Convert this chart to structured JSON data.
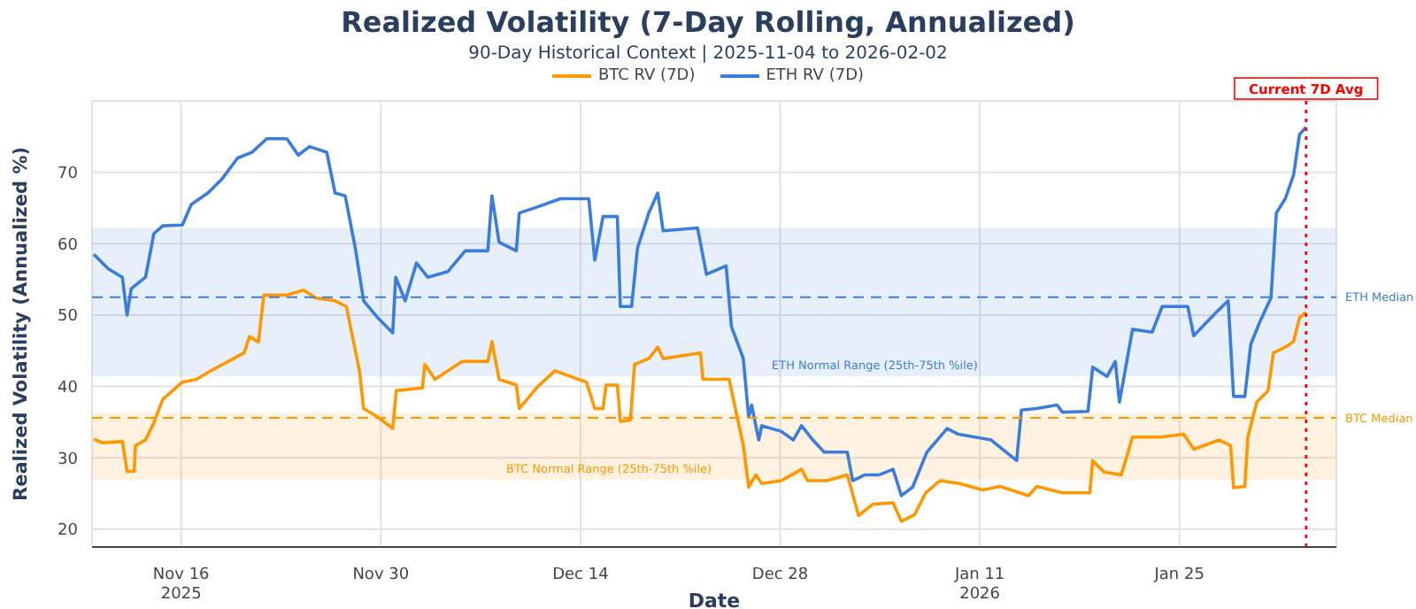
{
  "chart_data": {
    "type": "line",
    "title": "Realized Volatility (7-Day Rolling, Annualized)",
    "subtitle": "90-Day Historical Context | 2025-11-04 to 2026-02-02",
    "xlabel": "Date",
    "ylabel": "Realized Volatility (Annualized %)",
    "legend": "top",
    "grid": true,
    "marker": "none",
    "line_style": "solid",
    "xlim": [
      "2025-11-09T18:00",
      "2026-02-05T00:00"
    ],
    "xticks": [
      {
        "value": "2025-11-16",
        "label": "Nov 16\n2025"
      },
      {
        "value": "2025-11-30",
        "label": "Nov 30"
      },
      {
        "value": "2025-12-14",
        "label": "Dec 14"
      },
      {
        "value": "2025-12-28",
        "label": "Dec 28"
      },
      {
        "value": "2026-01-11",
        "label": "Jan 11\n2026"
      },
      {
        "value": "2026-01-25",
        "label": "Jan 25"
      }
    ],
    "ylim": [
      17.5,
      80
    ],
    "yticks": [
      20,
      30,
      40,
      50,
      60,
      70
    ],
    "bands": [
      {
        "axis": "y",
        "from": 41.4,
        "to": 62.2,
        "label": "ETH Normal Range (25th-75th %ile)",
        "color": "#3b7ddd"
      },
      {
        "axis": "y",
        "from": 26.9,
        "to": 36.3,
        "label": "BTC Normal Range (25th-75th %ile)",
        "color": "#ff9800"
      }
    ],
    "ref_lines": [
      {
        "axis": "y",
        "value": 52.5,
        "label": "ETH Median",
        "color": "#3b7ddd",
        "line_style": "dashed"
      },
      {
        "axis": "y",
        "value": 35.6,
        "label": "BTC Median",
        "color": "#ff9800",
        "line_style": "dashed"
      },
      {
        "axis": "x",
        "value": "2026-02-02T21:00",
        "label": "Current 7D Avg",
        "color": "#ff0000",
        "line_style": "dotted"
      }
    ],
    "series": [
      {
        "name": "BTC RV (7D)",
        "color": "#ff9800",
        "x": [
          "2025-11-09T21:00",
          "2025-11-10T12:00",
          "2025-11-11T21:00",
          "2025-11-12T05:00",
          "2025-11-12T17:00",
          "2025-11-12T19:00",
          "2025-11-13T12:00",
          "2025-11-14T02:00",
          "2025-11-14T17:00",
          "2025-11-16T02:00",
          "2025-11-17T02:00",
          "2025-11-18T02:00",
          "2025-11-19T07:00",
          "2025-11-20T10:00",
          "2025-11-20T19:00",
          "2025-11-21T10:00",
          "2025-11-21T19:00",
          "2025-11-23T10:00",
          "2025-11-24T14:00",
          "2025-11-25T10:00",
          "2025-11-26T19:00",
          "2025-11-27T14:00",
          "2025-11-28T12:00",
          "2025-11-28T19:00",
          "2025-11-29T19:00",
          "2025-11-30T20:00",
          "2025-12-01T02:00",
          "2025-12-02T22:00",
          "2025-12-03T02:00",
          "2025-12-03T19:00",
          "2025-12-05T17:00",
          "2025-12-07T12:00",
          "2025-12-07T19:00",
          "2025-12-08T07:00",
          "2025-12-09T12:00",
          "2025-12-09T17:00",
          "2025-12-10T22:00",
          "2025-12-12T05:00",
          "2025-12-14T10:00",
          "2025-12-15T00:00",
          "2025-12-15T14:00",
          "2025-12-15T19:00",
          "2025-12-16T14:00",
          "2025-12-16T19:00",
          "2025-12-17T12:00",
          "2025-12-17T19:00",
          "2025-12-18T19:00",
          "2025-12-19T10:00",
          "2025-12-19T19:00",
          "2025-12-22T10:00",
          "2025-12-22T14:00",
          "2025-12-24T10:00",
          "2025-12-25T10:00",
          "2025-12-25T19:00",
          "2025-12-26T07:00",
          "2025-12-26T17:00",
          "2025-12-28T02:00",
          "2025-12-29T12:00",
          "2025-12-29T22:00",
          "2025-12-31T07:00",
          "2026-01-01T17:00",
          "2026-01-02T12:00",
          "2026-01-03T12:00",
          "2026-01-04T22:00",
          "2026-01-05T12:00",
          "2026-01-06T10:00",
          "2026-01-07T05:00",
          "2026-01-08T05:00",
          "2026-01-09T14:00",
          "2026-01-11T05:00",
          "2026-01-12T10:00",
          "2026-01-14T10:00",
          "2026-01-15T00:00",
          "2026-01-16T19:00",
          "2026-01-18T17:00",
          "2026-01-18T22:00",
          "2026-01-19T17:00",
          "2026-01-20T22:00",
          "2026-01-21T17:00",
          "2026-01-23T17:00",
          "2026-01-25T07:00",
          "2026-01-26T00:00",
          "2026-01-27T19:00",
          "2026-01-28T14:00",
          "2026-01-28T19:00",
          "2026-01-29T14:00",
          "2026-01-29T19:00",
          "2026-01-30T10:00",
          "2026-01-31T05:00",
          "2026-01-31T14:00",
          "2026-02-01T10:00",
          "2026-02-02T00:00",
          "2026-02-02T10:00",
          "2026-02-02T21:00"
        ],
        "values": [
          32.6,
          32.1,
          32.3,
          28.1,
          28.1,
          31.7,
          32.5,
          34.9,
          38.2,
          40.6,
          41.0,
          42.2,
          43.5,
          44.7,
          47.0,
          46.2,
          52.8,
          52.8,
          53.5,
          52.4,
          52.0,
          51.2,
          42.2,
          36.9,
          35.7,
          34.1,
          39.4,
          39.8,
          43.1,
          41.0,
          43.5,
          43.5,
          46.3,
          41.0,
          40.2,
          36.9,
          39.8,
          42.2,
          40.6,
          36.9,
          36.9,
          40.2,
          40.2,
          35.1,
          35.3,
          43.1,
          43.9,
          45.5,
          43.9,
          44.7,
          41.0,
          41.0,
          31.7,
          25.9,
          27.6,
          26.4,
          26.8,
          28.4,
          26.8,
          26.8,
          27.6,
          21.9,
          23.5,
          23.7,
          21.1,
          22.0,
          25.1,
          26.8,
          26.4,
          25.5,
          26.0,
          24.7,
          26.0,
          25.1,
          25.1,
          29.6,
          28.0,
          27.6,
          32.9,
          32.9,
          33.3,
          31.2,
          32.5,
          31.7,
          25.8,
          26.0,
          32.9,
          37.8,
          39.4,
          44.7,
          45.5,
          46.3,
          49.6,
          50.4
        ]
      },
      {
        "name": "ETH RV (7D)",
        "color": "#3b7ddd",
        "x": [
          "2025-11-09T21:00",
          "2025-11-10T21:00",
          "2025-11-11T21:00",
          "2025-11-12T05:00",
          "2025-11-12T12:00",
          "2025-11-13T12:00",
          "2025-11-14T02:00",
          "2025-11-14T17:00",
          "2025-11-16T02:00",
          "2025-11-16T17:00",
          "2025-11-17T21:00",
          "2025-11-18T21:00",
          "2025-11-19T23:00",
          "2025-11-20T23:00",
          "2025-11-22T00:00",
          "2025-11-23T10:00",
          "2025-11-24T05:00",
          "2025-11-25T00:00",
          "2025-11-26T05:00",
          "2025-11-26T19:00",
          "2025-11-27T12:00",
          "2025-11-28T05:00",
          "2025-11-28T19:00",
          "2025-11-29T19:00",
          "2025-11-30T20:00",
          "2025-12-01T01:00",
          "2025-12-01T17:00",
          "2025-12-02T12:00",
          "2025-12-03T07:00",
          "2025-12-04T17:00",
          "2025-12-05T22:00",
          "2025-12-07T12:00",
          "2025-12-07T19:00",
          "2025-12-08T07:00",
          "2025-12-09T12:00",
          "2025-12-09T17:00",
          "2025-12-10T22:00",
          "2025-12-12T14:00",
          "2025-12-14T14:00",
          "2025-12-15T00:00",
          "2025-12-15T14:00",
          "2025-12-16T14:00",
          "2025-12-16T19:00",
          "2025-12-17T14:00",
          "2025-12-18T00:00",
          "2025-12-18T19:00",
          "2025-12-19T10:00",
          "2025-12-19T19:00",
          "2025-12-22T05:00",
          "2025-12-22T20:00",
          "2025-12-24T05:00",
          "2025-12-24T14:00",
          "2025-12-25T10:00",
          "2025-12-25T19:00",
          "2025-12-26T00:00",
          "2025-12-26T12:00",
          "2025-12-26T17:00",
          "2025-12-28T02:00",
          "2025-12-28T22:00",
          "2025-12-29T12:00",
          "2025-12-30T07:00",
          "2025-12-31T02:00",
          "2026-01-01T17:00",
          "2026-01-02T02:00",
          "2026-01-02T22:00",
          "2026-01-03T22:00",
          "2026-01-04T22:00",
          "2026-01-05T12:00",
          "2026-01-06T07:00",
          "2026-01-07T07:00",
          "2026-01-08T17:00",
          "2026-01-09T12:00",
          "2026-01-11T19:00",
          "2026-01-13T14:00",
          "2026-01-13T22:00",
          "2026-01-15T00:00",
          "2026-01-16T10:00",
          "2026-01-16T19:00",
          "2026-01-18T14:00",
          "2026-01-18T22:00",
          "2026-01-19T22:00",
          "2026-01-20T12:00",
          "2026-01-20T19:00",
          "2026-01-21T17:00",
          "2026-01-23T02:00",
          "2026-01-23T19:00",
          "2026-01-25T14:00",
          "2026-01-26T00:00",
          "2026-01-27T14:00",
          "2026-01-28T10:00",
          "2026-01-28T19:00",
          "2026-01-29T14:00",
          "2026-01-30T00:00",
          "2026-01-30T14:00",
          "2026-01-31T10:00",
          "2026-01-31T19:00",
          "2026-02-01T10:00",
          "2026-02-02T00:00",
          "2026-02-02T10:00",
          "2026-02-02T21:00"
        ],
        "values": [
          58.5,
          56.5,
          55.3,
          50.0,
          53.7,
          55.3,
          61.4,
          62.5,
          62.6,
          65.5,
          67.1,
          69.1,
          72.0,
          72.8,
          74.7,
          74.7,
          72.4,
          73.6,
          72.8,
          67.1,
          66.7,
          59.4,
          52.0,
          49.6,
          47.5,
          55.3,
          52.0,
          57.3,
          55.3,
          56.1,
          59.0,
          59.0,
          66.7,
          60.2,
          59.0,
          64.3,
          65.1,
          66.3,
          66.3,
          57.7,
          63.8,
          63.8,
          51.2,
          51.2,
          59.4,
          64.3,
          67.1,
          61.8,
          62.2,
          55.7,
          56.9,
          48.4,
          43.9,
          35.7,
          37.4,
          32.5,
          34.5,
          33.7,
          32.5,
          34.5,
          32.5,
          30.8,
          30.8,
          26.8,
          27.6,
          27.6,
          28.4,
          24.7,
          25.9,
          30.8,
          34.1,
          33.3,
          32.5,
          29.6,
          36.7,
          36.9,
          37.4,
          36.4,
          36.5,
          42.7,
          41.4,
          43.5,
          37.8,
          48.0,
          47.6,
          51.2,
          51.2,
          47.1,
          50.4,
          52.0,
          38.6,
          38.6,
          45.9,
          48.8,
          52.4,
          64.3,
          66.3,
          69.6,
          75.3,
          76.3
        ]
      }
    ]
  }
}
